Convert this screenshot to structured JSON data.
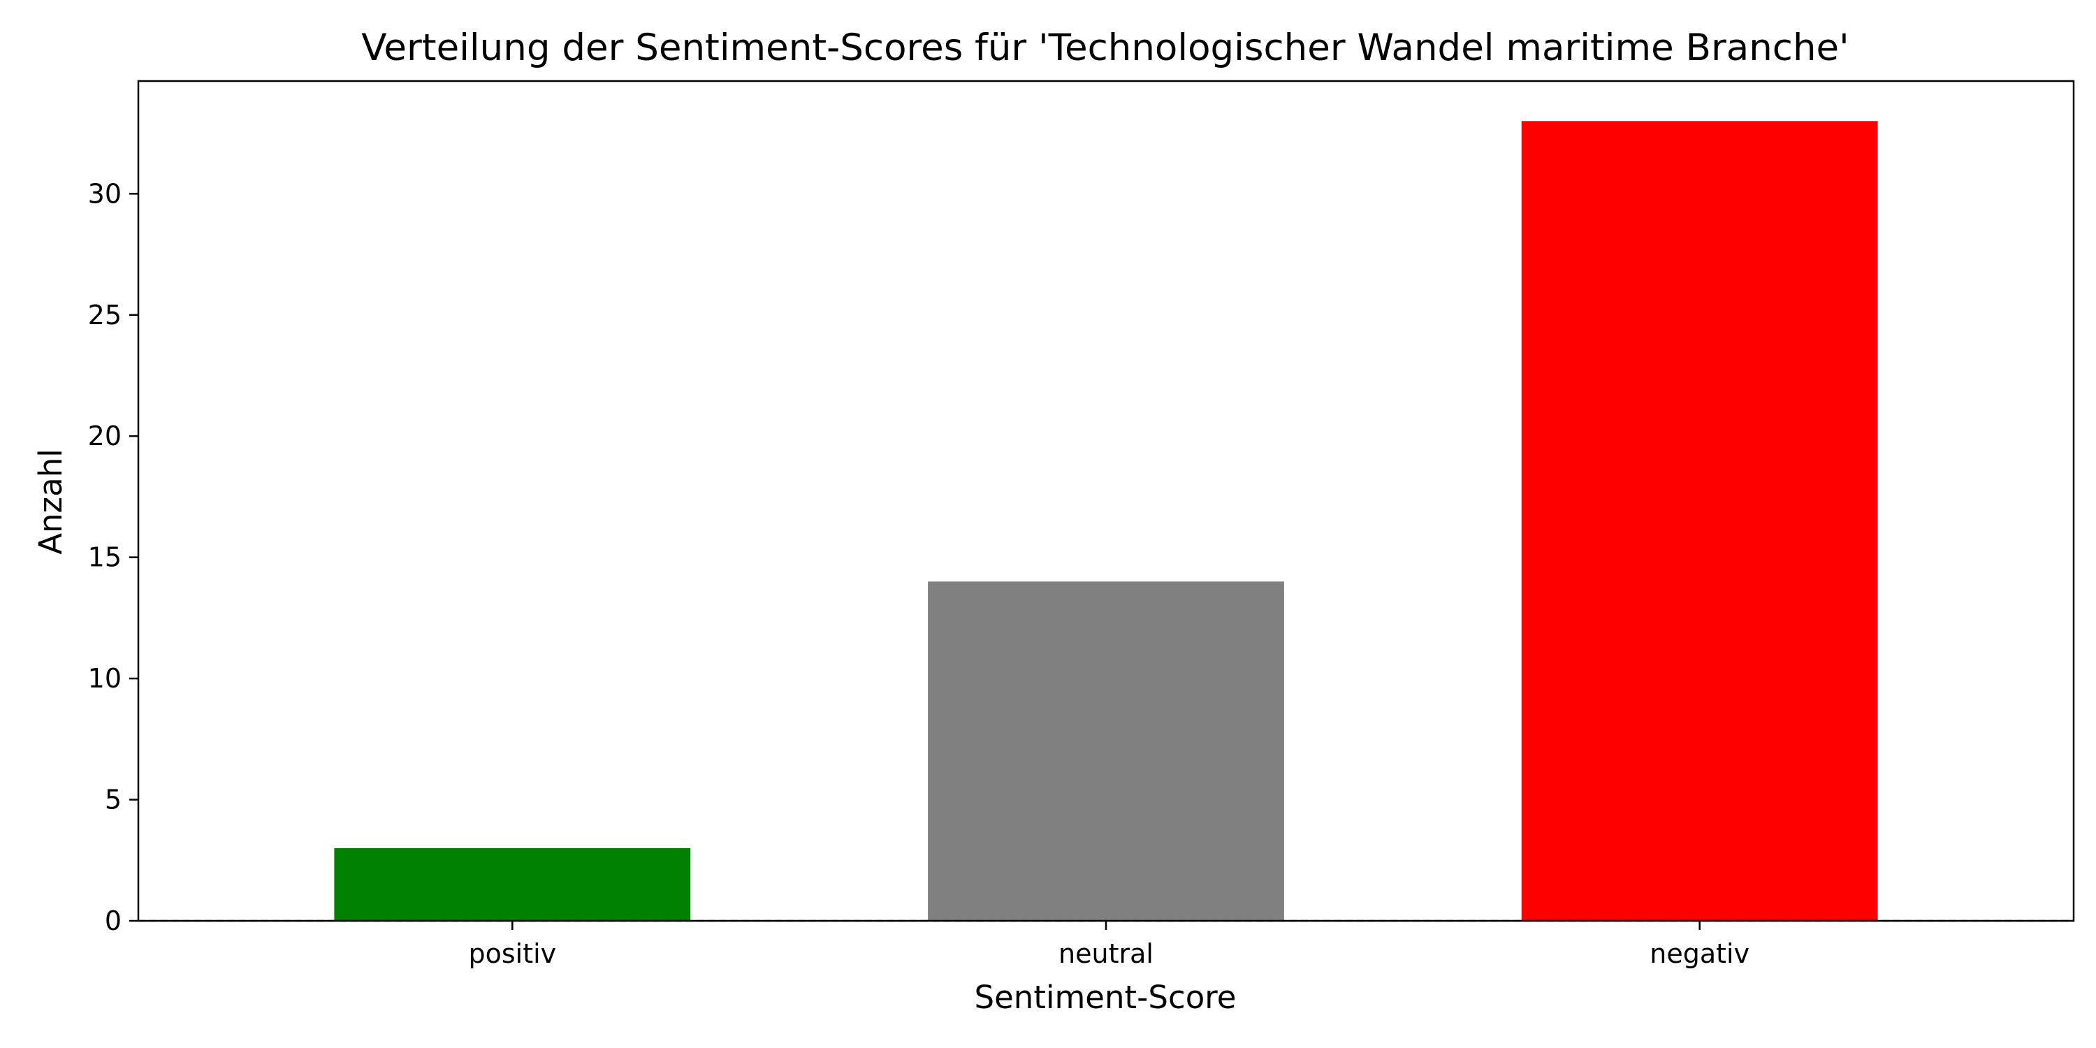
{
  "chart_data": {
    "type": "bar",
    "title": "Verteilung der Sentiment-Scores für 'Technologischer Wandel maritime Branche'",
    "xlabel": "Sentiment-Score",
    "ylabel": "Anzahl",
    "categories": [
      "positiv",
      "neutral",
      "negativ"
    ],
    "values": [
      3,
      14,
      33
    ],
    "colors": [
      "#008000",
      "#808080",
      "#ff0000"
    ],
    "ylim": [
      0,
      34.65
    ],
    "yticks": [
      0,
      5,
      10,
      15,
      20,
      25,
      30
    ],
    "baseline": 0,
    "grid": false,
    "legend": "none"
  }
}
